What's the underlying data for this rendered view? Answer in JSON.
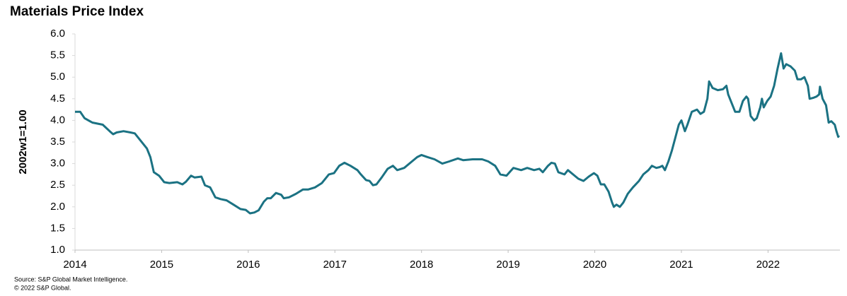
{
  "chart_data": {
    "type": "line",
    "title": "Materials Price Index",
    "y_label": "2002w1=1.00",
    "source": "Source: S&P Global Market Intelligence.",
    "copyright": "© 2022 S&P Global.",
    "color": "#1b7283",
    "xlim": [
      2014,
      2022.83
    ],
    "xticks": [
      2014,
      2015,
      2016,
      2017,
      2018,
      2019,
      2020,
      2021,
      2022
    ],
    "ylim": [
      1,
      6
    ],
    "yticks": [
      {
        "value": 1,
        "label": "1.0"
      },
      1.5,
      {
        "value": 2,
        "label": "2.0"
      },
      2.5,
      {
        "value": 3,
        "label": "3.0"
      },
      3.5,
      {
        "value": 4,
        "label": "4.0"
      },
      4.5,
      {
        "value": 5,
        "label": "5.0"
      },
      5.5,
      {
        "value": 6,
        "label": "6.0"
      }
    ],
    "x": [
      2014.0,
      2014.06,
      2014.11,
      2014.2,
      2014.32,
      2014.4,
      2014.44,
      2014.48,
      2014.56,
      2014.64,
      2014.69,
      2014.73,
      2014.79,
      2014.83,
      2014.87,
      2014.91,
      2014.97,
      2015.03,
      2015.09,
      2015.18,
      2015.24,
      2015.28,
      2015.34,
      2015.38,
      2015.46,
      2015.5,
      2015.56,
      2015.62,
      2015.68,
      2015.75,
      2015.83,
      2015.91,
      2015.97,
      2016.02,
      2016.07,
      2016.12,
      2016.18,
      2016.22,
      2016.26,
      2016.32,
      2016.38,
      2016.41,
      2016.47,
      2016.55,
      2016.63,
      2016.69,
      2016.77,
      2016.85,
      2016.93,
      2016.99,
      2017.05,
      2017.11,
      2017.18,
      2017.26,
      2017.3,
      2017.36,
      2017.4,
      2017.44,
      2017.48,
      2017.54,
      2017.61,
      2017.67,
      2017.72,
      2017.8,
      2017.89,
      2017.95,
      2018.0,
      2018.07,
      2018.15,
      2018.24,
      2018.32,
      2018.42,
      2018.48,
      2018.59,
      2018.7,
      2018.77,
      2018.85,
      2018.91,
      2018.98,
      2019.06,
      2019.15,
      2019.22,
      2019.3,
      2019.36,
      2019.4,
      2019.46,
      2019.5,
      2019.54,
      2019.58,
      2019.65,
      2019.69,
      2019.75,
      2019.81,
      2019.87,
      2019.93,
      2019.99,
      2020.03,
      2020.07,
      2020.11,
      2020.16,
      2020.2,
      2020.22,
      2020.25,
      2020.29,
      2020.33,
      2020.38,
      2020.44,
      2020.51,
      2020.56,
      2020.62,
      2020.66,
      2020.71,
      2020.75,
      2020.78,
      2020.81,
      2020.85,
      2020.89,
      2020.93,
      2020.97,
      2021.0,
      2021.04,
      2021.07,
      2021.12,
      2021.18,
      2021.22,
      2021.26,
      2021.3,
      2021.32,
      2021.36,
      2021.42,
      2021.48,
      2021.52,
      2021.54,
      2021.58,
      2021.62,
      2021.67,
      2021.71,
      2021.75,
      2021.77,
      2021.8,
      2021.84,
      2021.87,
      2021.91,
      2021.93,
      2021.95,
      2021.99,
      2022.03,
      2022.07,
      2022.11,
      2022.15,
      2022.18,
      2022.21,
      2022.26,
      2022.31,
      2022.34,
      2022.38,
      2022.42,
      2022.46,
      2022.48,
      2022.52,
      2022.56,
      2022.59,
      2022.6,
      2022.63,
      2022.67,
      2022.7,
      2022.73,
      2022.77,
      2022.79,
      2022.81,
      2022.82
    ],
    "values": [
      4.2,
      4.2,
      4.05,
      3.95,
      3.9,
      3.75,
      3.68,
      3.72,
      3.75,
      3.72,
      3.7,
      3.6,
      3.45,
      3.35,
      3.15,
      2.8,
      2.72,
      2.57,
      2.55,
      2.57,
      2.52,
      2.58,
      2.72,
      2.68,
      2.7,
      2.5,
      2.45,
      2.22,
      2.18,
      2.15,
      2.05,
      1.95,
      1.93,
      1.85,
      1.87,
      1.92,
      2.12,
      2.2,
      2.2,
      2.32,
      2.28,
      2.2,
      2.22,
      2.3,
      2.4,
      2.4,
      2.45,
      2.55,
      2.75,
      2.78,
      2.95,
      3.02,
      2.95,
      2.85,
      2.75,
      2.62,
      2.6,
      2.5,
      2.52,
      2.68,
      2.88,
      2.95,
      2.85,
      2.9,
      3.05,
      3.15,
      3.2,
      3.15,
      3.1,
      3.0,
      3.05,
      3.12,
      3.08,
      3.1,
      3.1,
      3.05,
      2.95,
      2.75,
      2.72,
      2.9,
      2.85,
      2.9,
      2.85,
      2.88,
      2.8,
      2.95,
      3.02,
      3.0,
      2.8,
      2.75,
      2.85,
      2.75,
      2.65,
      2.6,
      2.7,
      2.78,
      2.72,
      2.52,
      2.52,
      2.35,
      2.1,
      2.0,
      2.05,
      2.0,
      2.1,
      2.3,
      2.45,
      2.6,
      2.75,
      2.85,
      2.95,
      2.9,
      2.92,
      2.95,
      2.85,
      3.05,
      3.3,
      3.6,
      3.9,
      4.0,
      3.75,
      3.9,
      4.2,
      4.25,
      4.15,
      4.2,
      4.5,
      4.9,
      4.75,
      4.7,
      4.72,
      4.8,
      4.6,
      4.4,
      4.2,
      4.2,
      4.45,
      4.55,
      4.5,
      4.1,
      4.0,
      4.05,
      4.3,
      4.5,
      4.3,
      4.45,
      4.55,
      4.8,
      5.2,
      5.55,
      5.2,
      5.3,
      5.25,
      5.15,
      4.95,
      4.95,
      5.0,
      4.8,
      4.5,
      4.52,
      4.55,
      4.6,
      4.78,
      4.5,
      4.35,
      3.95,
      3.98,
      3.9,
      3.75,
      3.62,
      3.65
    ]
  }
}
